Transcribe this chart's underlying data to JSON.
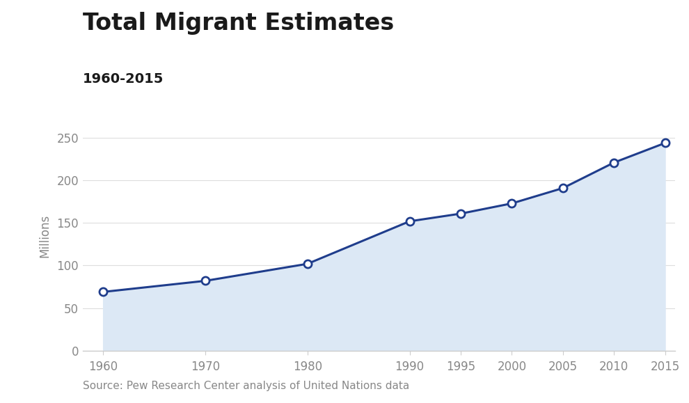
{
  "title": "Total Migrant Estimates",
  "subtitle": "1960-2015",
  "source": "Source: Pew Research Center analysis of United Nations data",
  "ylabel": "Millions",
  "years": [
    1960,
    1970,
    1980,
    1990,
    1995,
    2000,
    2005,
    2010,
    2015
  ],
  "values": [
    69,
    82,
    102,
    152,
    161,
    173,
    191,
    221,
    244
  ],
  "ylim": [
    0,
    270
  ],
  "yticks": [
    0,
    50,
    100,
    150,
    200,
    250
  ],
  "xticks": [
    1960,
    1970,
    1980,
    1990,
    1995,
    2000,
    2005,
    2010,
    2015
  ],
  "xlim": [
    1958,
    2016
  ],
  "line_color": "#1f3d8c",
  "fill_color": "#dce8f5",
  "marker_face_color": "#ffffff",
  "marker_edge_color": "#1f3d8c",
  "background_color": "#ffffff",
  "title_fontsize": 24,
  "subtitle_fontsize": 14,
  "source_fontsize": 11,
  "tick_fontsize": 12,
  "ylabel_fontsize": 12,
  "tick_color": "#888888",
  "spine_color": "#cccccc",
  "grid_color": "#dddddd"
}
